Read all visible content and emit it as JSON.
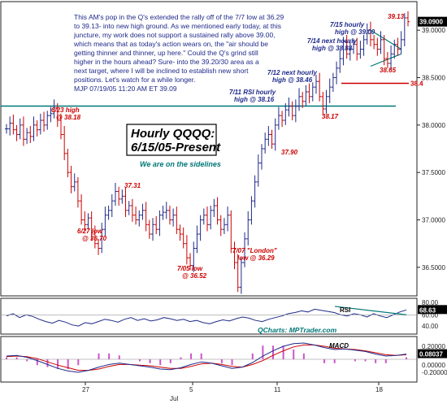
{
  "commentary": [
    "This AM's pop in the Q's extended the rally off of the 7/7 low at 36.29",
    "to 39.13- into new high ground. As we mentioned early today, at this",
    "juncture, my work does not support a sustained rally above 39.00,",
    "which means that as today's action wears on, the \"air should be",
    "getting thinner and thinner, up here.\" Could the Q's grind still",
    "higher in the hours ahead? Sure- into the 39.20/30 area as a",
    "next target, where I will be inclined to establish new short",
    "positions. Let's watch for a while longer.",
    "MJP 07/19/05 11:20 AM ET 39.09"
  ],
  "chart_data": [
    {
      "type": "ohlc",
      "title": "Hourly QQQQ:",
      "subtitle": "6/15/05-Present",
      "note": "We are on the sidelines",
      "y_ticks": [
        36.5,
        37.0,
        37.5,
        38.0,
        38.5,
        39.0
      ],
      "y_tick_labels": [
        "36.5000",
        "37.0000",
        "37.5000",
        "38.0000",
        "38.5000",
        "39.0000"
      ],
      "ylim": [
        36.25,
        39.25
      ],
      "last_price_label": "39.0900",
      "last_price": 39.09,
      "red_level_label": "38.4",
      "red_level": 38.44,
      "horizontal_line": 38.2,
      "closes": [
        37.96,
        38.02,
        37.95,
        37.9,
        38.0,
        37.85,
        37.92,
        37.88,
        38.0,
        37.95,
        38.05,
        38.0,
        38.1,
        38.12,
        38.18,
        38.05,
        37.9,
        37.7,
        37.5,
        37.35,
        37.4,
        37.2,
        37.0,
        36.95,
        37.02,
        36.85,
        36.75,
        36.7,
        36.9,
        37.05,
        37.1,
        37.2,
        37.3,
        37.22,
        37.25,
        37.1,
        37.15,
        37.05,
        37.0,
        37.05,
        37.1,
        36.95,
        36.85,
        36.95,
        36.9,
        37.05,
        37.08,
        37.1,
        37.0,
        37.05,
        36.9,
        36.85,
        36.75,
        36.6,
        36.52,
        36.7,
        36.85,
        37.0,
        37.05,
        36.95,
        37.1,
        37.15,
        37.0,
        36.9,
        36.95,
        37.05,
        36.7,
        36.55,
        36.29,
        36.55,
        36.8,
        37.0,
        37.2,
        37.4,
        37.6,
        37.75,
        37.85,
        37.9,
        37.8,
        38.0,
        38.1,
        38.05,
        38.16,
        38.2,
        38.1,
        38.2,
        38.3,
        38.25,
        38.35,
        38.3,
        38.4,
        38.46,
        38.3,
        38.17,
        38.3,
        38.4,
        38.5,
        38.6,
        38.7,
        38.88,
        38.75,
        38.8,
        38.85,
        38.75,
        38.8,
        38.9,
        39.0,
        38.9,
        38.85,
        38.8,
        38.9,
        38.7,
        38.65,
        38.75,
        38.85,
        38.8,
        38.9,
        39.13,
        39.09
      ],
      "annotations": [
        {
          "text": "6/23 high",
          "text2": "@ 38.18",
          "color": "#cc0000"
        },
        {
          "text": "37.31",
          "text2": "",
          "color": "#cc0000"
        },
        {
          "text": "6/27 low",
          "text2": "@ 36.70",
          "color": "#cc0000"
        },
        {
          "text": "7/05 low",
          "text2": "@ 36.52",
          "color": "#cc0000"
        },
        {
          "text": "7/07 \"London\"",
          "text2": "low @ 36.29",
          "color": "#cc0000"
        },
        {
          "text": "37.90",
          "text2": "",
          "color": "#cc0000"
        },
        {
          "text": "7/11 RSI hourly",
          "text2": "high @ 38.16",
          "color": "#1f2a8a"
        },
        {
          "text": "7/12 next hourly",
          "text2": "high @ 38.46",
          "color": "#1f2a8a"
        },
        {
          "text": "38.17",
          "text2": "",
          "color": "#cc0000"
        },
        {
          "text": "7/14 next hourly",
          "text2": "high @ 38.88",
          "color": "#1f2a8a"
        },
        {
          "text": "7/15 hourly",
          "text2": "high @ 39.00",
          "color": "#1f2a8a"
        },
        {
          "text": "39.13",
          "text2": "",
          "color": "#cc0000"
        },
        {
          "text": "38.65",
          "text2": "",
          "color": "#cc0000"
        }
      ]
    },
    {
      "type": "line",
      "title": "RSI",
      "y_ticks": [
        40,
        60
      ],
      "y_tick_labels": [
        "40.00",
        "60.00"
      ],
      "last_label": "68.63",
      "last_value": 68.63,
      "top_label": "80.00",
      "ylim": [
        30,
        85
      ],
      "values": [
        58,
        62,
        55,
        60,
        57,
        52,
        48,
        45,
        50,
        47,
        42,
        40,
        46,
        44,
        48,
        52,
        50,
        47,
        52,
        55,
        50,
        53,
        49,
        51,
        55,
        53,
        50,
        52,
        48,
        50,
        46,
        44,
        48,
        51,
        49,
        53,
        56,
        54,
        50,
        48,
        52,
        55,
        58,
        62,
        64,
        67,
        65,
        70,
        68,
        66,
        64,
        60,
        58,
        62,
        60,
        56,
        62,
        58,
        55,
        60,
        65,
        68.63
      ]
    },
    {
      "type": "line",
      "title": "MACD",
      "y_ticks": [
        0.2,
        -0.2
      ],
      "y_tick_labels": [
        "0.20000",
        "-0.20000"
      ],
      "last_label": "0.08037",
      "last_value": 0.08037,
      "mid_label": "0.00000",
      "ylim": [
        -0.3,
        0.3
      ],
      "macd": [
        0.05,
        0.06,
        0.03,
        -0.02,
        -0.08,
        -0.14,
        -0.18,
        -0.2,
        -0.17,
        -0.12,
        -0.08,
        -0.06,
        -0.08,
        -0.1,
        -0.12,
        -0.15,
        -0.16,
        -0.13,
        -0.08,
        -0.04,
        -0.06,
        -0.1,
        -0.14,
        -0.12,
        -0.05,
        0.05,
        0.13,
        0.2,
        0.24,
        0.25,
        0.22,
        0.18,
        0.15,
        0.16,
        0.14,
        0.12,
        0.08,
        0.05,
        0.06,
        0.08
      ],
      "signal": [
        0.04,
        0.05,
        0.04,
        0.01,
        -0.04,
        -0.09,
        -0.13,
        -0.17,
        -0.17,
        -0.15,
        -0.11,
        -0.08,
        -0.08,
        -0.09,
        -0.1,
        -0.12,
        -0.14,
        -0.14,
        -0.11,
        -0.07,
        -0.06,
        -0.08,
        -0.11,
        -0.12,
        -0.08,
        -0.02,
        0.06,
        0.13,
        0.19,
        0.22,
        0.22,
        0.2,
        0.17,
        0.16,
        0.15,
        0.13,
        0.1,
        0.07,
        0.06,
        0.07
      ]
    }
  ],
  "x_labels": [
    "27",
    "5",
    "11",
    "18"
  ],
  "month_label": "Jul",
  "watermark": "QCharts: MPTrader.com",
  "colors": {
    "up": "#1f2a8a",
    "down": "#cc0000",
    "rsi": "#1f2a8a",
    "macd": "#1f2a8a",
    "signal": "#cc0000",
    "hist": "#cc55cc",
    "level": "#007777"
  }
}
